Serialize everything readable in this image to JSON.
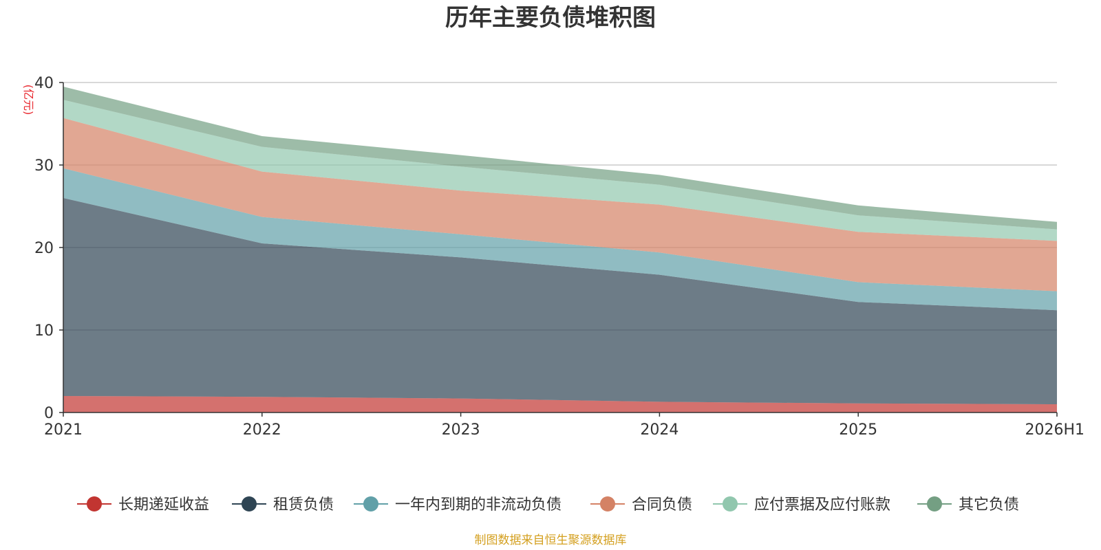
{
  "chart_data": {
    "type": "area",
    "stacked": true,
    "title": "历年主要负债堆积图",
    "unit": "(亿元)",
    "categories": [
      "2021",
      "2022",
      "2023",
      "2024",
      "2025",
      "2026H1"
    ],
    "ylim": [
      0,
      40
    ],
    "yticks": [
      0,
      10,
      20,
      30,
      40
    ],
    "grid": true,
    "legend_position": "bottom",
    "series": [
      {
        "name": "长期递延收益",
        "color": "#c23531",
        "values": [
          2.0,
          1.9,
          1.7,
          1.3,
          1.1,
          1.0
        ]
      },
      {
        "name": "租赁负债",
        "color": "#2f4554",
        "values": [
          24.0,
          18.6,
          17.1,
          15.4,
          12.3,
          11.4
        ]
      },
      {
        "name": "一年内到期的非流动负债",
        "color": "#61a0a8",
        "values": [
          3.6,
          3.2,
          2.8,
          2.7,
          2.4,
          2.3
        ]
      },
      {
        "name": "合同负债",
        "color": "#d48265",
        "values": [
          6.1,
          5.5,
          5.3,
          5.8,
          6.1,
          6.1
        ]
      },
      {
        "name": "应付票据及应付账款",
        "color": "#91c7ae",
        "values": [
          2.2,
          3.0,
          2.9,
          2.4,
          2.0,
          1.4
        ]
      },
      {
        "name": "其它负债",
        "color": "#749f83",
        "values": [
          1.6,
          1.3,
          1.4,
          1.2,
          1.2,
          0.9
        ]
      }
    ]
  },
  "source_note": "制图数据来自恒生聚源数据库"
}
